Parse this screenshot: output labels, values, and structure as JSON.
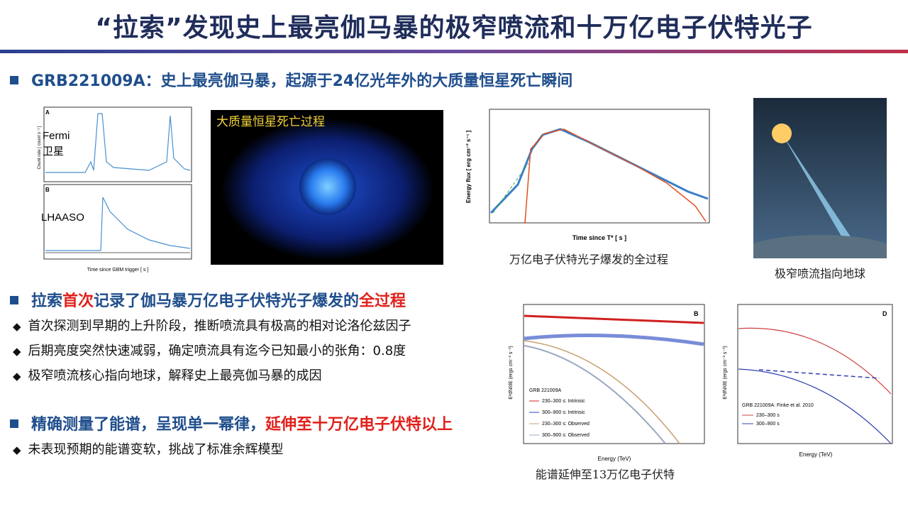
{
  "header": {
    "title": "“拉索”发现史上最亮伽马暴的极窄喷流和十万亿电子伏特光子"
  },
  "section1": {
    "heading": "GRB221009A：史上最亮伽马暴，起源于24亿光年外的大质量恒星死亡瞬间",
    "figures": {
      "lightcurve": {
        "panel_a": "A",
        "fermi_line1": "Fermi",
        "fermi_line2": "卫星",
        "panel_b": "B",
        "lhaaso": "LHAASO",
        "x_label": "Time since GBM trigger [ s ]",
        "y_label": "Count rate [ count s⁻¹ ]"
      },
      "star": {
        "caption": "大质量恒星死亡过程"
      },
      "flux": {
        "x_label": "Time since T* [ s ]",
        "y_label": "Energy flux [ erg cm⁻² s⁻¹ ]",
        "caption": "万亿电子伏特光子爆发的全过程"
      },
      "jet": {
        "caption": "极窄喷流指向地球"
      }
    }
  },
  "section2": {
    "heading": [
      "拉索",
      "首次",
      "记录了伽马暴万亿电子伏特光子爆发的",
      "全过程"
    ],
    "bullets": [
      "首次探测到早期的上升阶段，推断喷流具有极高的相对论洛伦兹因子",
      "后期亮度突然快速减弱，确定喷流具有迄今已知最小的张角：0.8度",
      "极窄喷流核心指向地球，解释史上最亮伽马暴的成因"
    ]
  },
  "section3": {
    "heading": [
      "精确测量了能谱，呈现单一幂律，",
      "延伸至十万亿电子伏特以上"
    ],
    "bullets": [
      "未表现预期的能谱变软，挑战了标准余辉模型"
    ],
    "figures": {
      "spectrum_b": {
        "panel": "B",
        "source": "GRB 221009A",
        "legend": [
          "230–300 s: Intrinsic",
          "300–900 s: Intrinsic",
          "230–300 s: Observed",
          "300–900 s: Observed"
        ],
        "x_label": "Energy (TeV)",
        "y_label": "E²dN/dE (ergs cm⁻² s⁻¹)",
        "caption": "能谱延伸至13万亿电子伏特"
      },
      "spectrum_d": {
        "panel": "D",
        "source": "GRB 221009A: Finke et al. 2010",
        "legend": [
          "230–300 s",
          "300–900 s"
        ],
        "x_label": "Energy (TeV)",
        "y_label": "E²dN/dE (ergs cm⁻² s⁻¹)"
      }
    }
  }
}
